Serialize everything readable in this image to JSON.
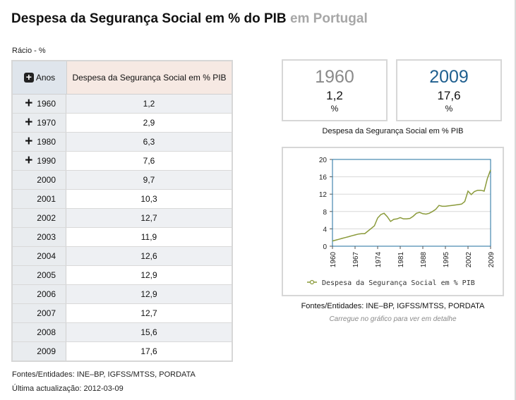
{
  "header": {
    "title": "Despesa da Segurança Social em % do PIB",
    "subtitle": "em Portugal"
  },
  "unit_label": "Rácio - %",
  "table": {
    "col_year": "Anos",
    "col_value": "Despesa da Segurança Social em % PIB",
    "rows": [
      {
        "year": "1960",
        "value": "1,2",
        "expand": "+"
      },
      {
        "year": "1970",
        "value": "2,9",
        "expand": "+"
      },
      {
        "year": "1980",
        "value": "6,3",
        "expand": "+"
      },
      {
        "year": "1990",
        "value": "7,6",
        "expand": "+"
      },
      {
        "year": "2000",
        "value": "9,7"
      },
      {
        "year": "2001",
        "value": "10,3"
      },
      {
        "year": "2002",
        "value": "12,7"
      },
      {
        "year": "2003",
        "value": "11,9"
      },
      {
        "year": "2004",
        "value": "12,6"
      },
      {
        "year": "2005",
        "value": "12,9"
      },
      {
        "year": "2006",
        "value": "12,9"
      },
      {
        "year": "2007",
        "value": "12,7"
      },
      {
        "year": "2008",
        "value": "15,6"
      },
      {
        "year": "2009",
        "value": "17,6"
      }
    ]
  },
  "summary": {
    "start": {
      "year": "1960",
      "value": "1,2",
      "unit": "%"
    },
    "end": {
      "year": "2009",
      "value": "17,6",
      "unit": "%"
    },
    "caption": "Despesa da Segurança Social em % PIB"
  },
  "footer": {
    "sources": "Fontes/Entidades: INE–BP, IGFSS/MTSS, PORDATA",
    "updated": "Última actualização: 2012-03-09"
  },
  "chart_sources": "Fontes/Entidades: INE–BP, IGFSS/MTSS, PORDATA",
  "chart_hint": "Carregue no gráfico para ver em detalhe",
  "colors": {
    "line": "#8a9a3a",
    "plot_border": "#1f6f9f",
    "end_year": "#1f5f8f",
    "start_year": "#8a8a8a"
  },
  "chart_data": {
    "type": "line",
    "title": "",
    "xlabel": "",
    "ylabel": "",
    "ylim": [
      0,
      20
    ],
    "yticks": [
      0,
      4,
      8,
      12,
      16,
      20
    ],
    "xticks": [
      "1960",
      "1967",
      "1974",
      "1981",
      "1988",
      "1995",
      "2002",
      "2009"
    ],
    "legend": "Despesa da Segurança Social em % PIB",
    "legend_position": "bottom",
    "series": [
      {
        "name": "Despesa da Segurança Social em % PIB",
        "x": [
          1960,
          1961,
          1962,
          1963,
          1964,
          1965,
          1966,
          1967,
          1968,
          1969,
          1970,
          1971,
          1972,
          1973,
          1974,
          1975,
          1976,
          1977,
          1978,
          1979,
          1980,
          1981,
          1982,
          1983,
          1984,
          1985,
          1986,
          1987,
          1988,
          1989,
          1990,
          1991,
          1992,
          1993,
          1994,
          1995,
          1996,
          1997,
          1998,
          1999,
          2000,
          2001,
          2002,
          2003,
          2004,
          2005,
          2006,
          2007,
          2008,
          2009
        ],
        "values": [
          1.2,
          1.4,
          1.6,
          1.8,
          2.0,
          2.2,
          2.4,
          2.6,
          2.8,
          2.9,
          2.9,
          3.5,
          4.1,
          4.7,
          6.5,
          7.3,
          7.6,
          6.8,
          5.7,
          6.2,
          6.3,
          6.6,
          6.3,
          6.3,
          6.4,
          6.9,
          7.6,
          7.8,
          7.5,
          7.4,
          7.6,
          8.0,
          8.5,
          9.4,
          9.2,
          9.2,
          9.3,
          9.4,
          9.5,
          9.6,
          9.7,
          10.3,
          12.7,
          11.9,
          12.6,
          12.9,
          12.9,
          12.7,
          15.6,
          17.6
        ]
      }
    ]
  }
}
